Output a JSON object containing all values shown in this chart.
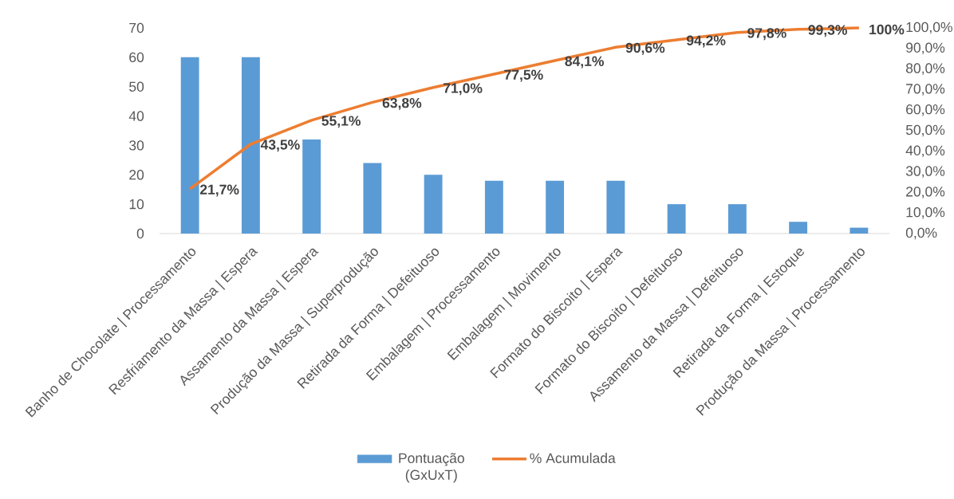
{
  "chart_data": {
    "type": "bar",
    "categories": [
      "Banho de Chocolate | Processamento",
      "Resfriamento da Massa | Espera",
      "Assamento da Massa | Espera",
      "Produção da Massa | Superprodução",
      "Retirada da Forma | Defeituoso",
      "Embalagem | Processamento",
      "Embalagem | Movimento",
      "Formato do Biscoito | Espera",
      "Formato do Biscoito | Defeituoso",
      "Assamento da Massa | Defeituoso",
      "Retirada da Forma | Estoque",
      "Produção da Massa | Processamento"
    ],
    "series": [
      {
        "name": "Pontuação (GxUxT)",
        "color": "#5b9bd5",
        "values": [
          60,
          60,
          32,
          24,
          20,
          18,
          18,
          18,
          10,
          10,
          4,
          2
        ]
      },
      {
        "name": "% Acumulada",
        "type": "line",
        "axis": "y2",
        "color": "#ed7d31",
        "values": [
          21.7,
          43.5,
          55.1,
          63.8,
          71.0,
          77.5,
          84.1,
          90.6,
          94.2,
          97.8,
          99.3,
          100
        ],
        "value_labels": [
          "21,7%",
          "43,5%",
          "55,1%",
          "63,8%",
          "71,0%",
          "77,5%",
          "84,1%",
          "90,6%",
          "94,2%",
          "97,8%",
          "99,3%",
          "100%"
        ]
      }
    ],
    "ylim": [
      0,
      70
    ],
    "yticks": [
      0,
      10,
      20,
      30,
      40,
      50,
      60,
      70
    ],
    "y2lim": [
      0,
      100
    ],
    "y2ticks": [
      {
        "value": 0,
        "label": "0,0%"
      },
      {
        "value": 10,
        "label": "10,0%"
      },
      {
        "value": 20,
        "label": "20,0%"
      },
      {
        "value": 30,
        "label": "30,0%"
      },
      {
        "value": 40,
        "label": "40,0%"
      },
      {
        "value": 50,
        "label": "50,0%"
      },
      {
        "value": 60,
        "label": "60,0%"
      },
      {
        "value": 70,
        "label": "70,0%"
      },
      {
        "value": 80,
        "label": "80,0%"
      },
      {
        "value": 90,
        "label": "90,0%"
      },
      {
        "value": 100,
        "label": "100,0%"
      }
    ],
    "legend": "bottom"
  }
}
